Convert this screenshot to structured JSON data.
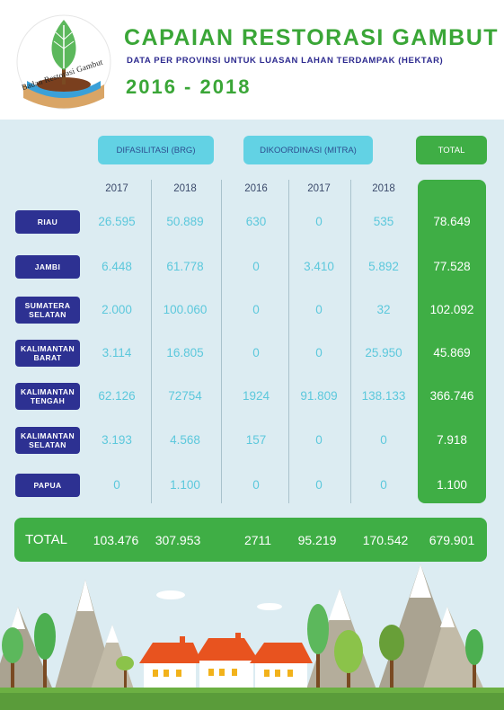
{
  "header": {
    "logo_text": "Badan Restorasi Gambut",
    "title": "CAPAIAN RESTORASI GAMBUT",
    "subtitle": "DATA PER PROVINSI UNTUK LUASAN LAHAN TERDAMPAK (HEKTAR)",
    "years": "2016 - 2018"
  },
  "columns": {
    "group_brg": "DIFASILITASI (BRG)",
    "group_mitra": "DIKOORDINASI (MITRA)",
    "group_total": "TOTAL",
    "year_labels": [
      "2017",
      "2018",
      "2016",
      "2017",
      "2018"
    ]
  },
  "rows": [
    {
      "province": "RIAU",
      "values": [
        "26.595",
        "50.889",
        "630",
        "0",
        "535",
        "78.649"
      ]
    },
    {
      "province": "JAMBI",
      "values": [
        "6.448",
        "61.778",
        "0",
        "3.410",
        "5.892",
        "77.528"
      ]
    },
    {
      "province": "SUMATERA\nSELATAN",
      "values": [
        "2.000",
        "100.060",
        "0",
        "0",
        "32",
        "102.092"
      ]
    },
    {
      "province": "KALIMANTAN\nBARAT",
      "values": [
        "3.114",
        "16.805",
        "0",
        "0",
        "25.950",
        "45.869"
      ]
    },
    {
      "province": "KALIMANTAN\nTENGAH",
      "values": [
        "62.126",
        "72754",
        "1924",
        "91.809",
        "138.133",
        "366.746"
      ]
    },
    {
      "province": "KALIMANTAN\nSELATAN",
      "values": [
        "3.193",
        "4.568",
        "157",
        "0",
        "0",
        "7.918"
      ]
    },
    {
      "province": "PAPUA",
      "values": [
        "0",
        "1.100",
        "0",
        "0",
        "0",
        "1.100"
      ]
    }
  ],
  "totals": {
    "label": "TOTAL",
    "values": [
      "103.476",
      "307.953",
      "2711",
      "95.219",
      "170.542",
      "679.901"
    ]
  },
  "colors": {
    "brand_green": "#3fae45",
    "navy": "#2d3192",
    "cyan": "#62d2e4",
    "background": "#dcecf2"
  }
}
